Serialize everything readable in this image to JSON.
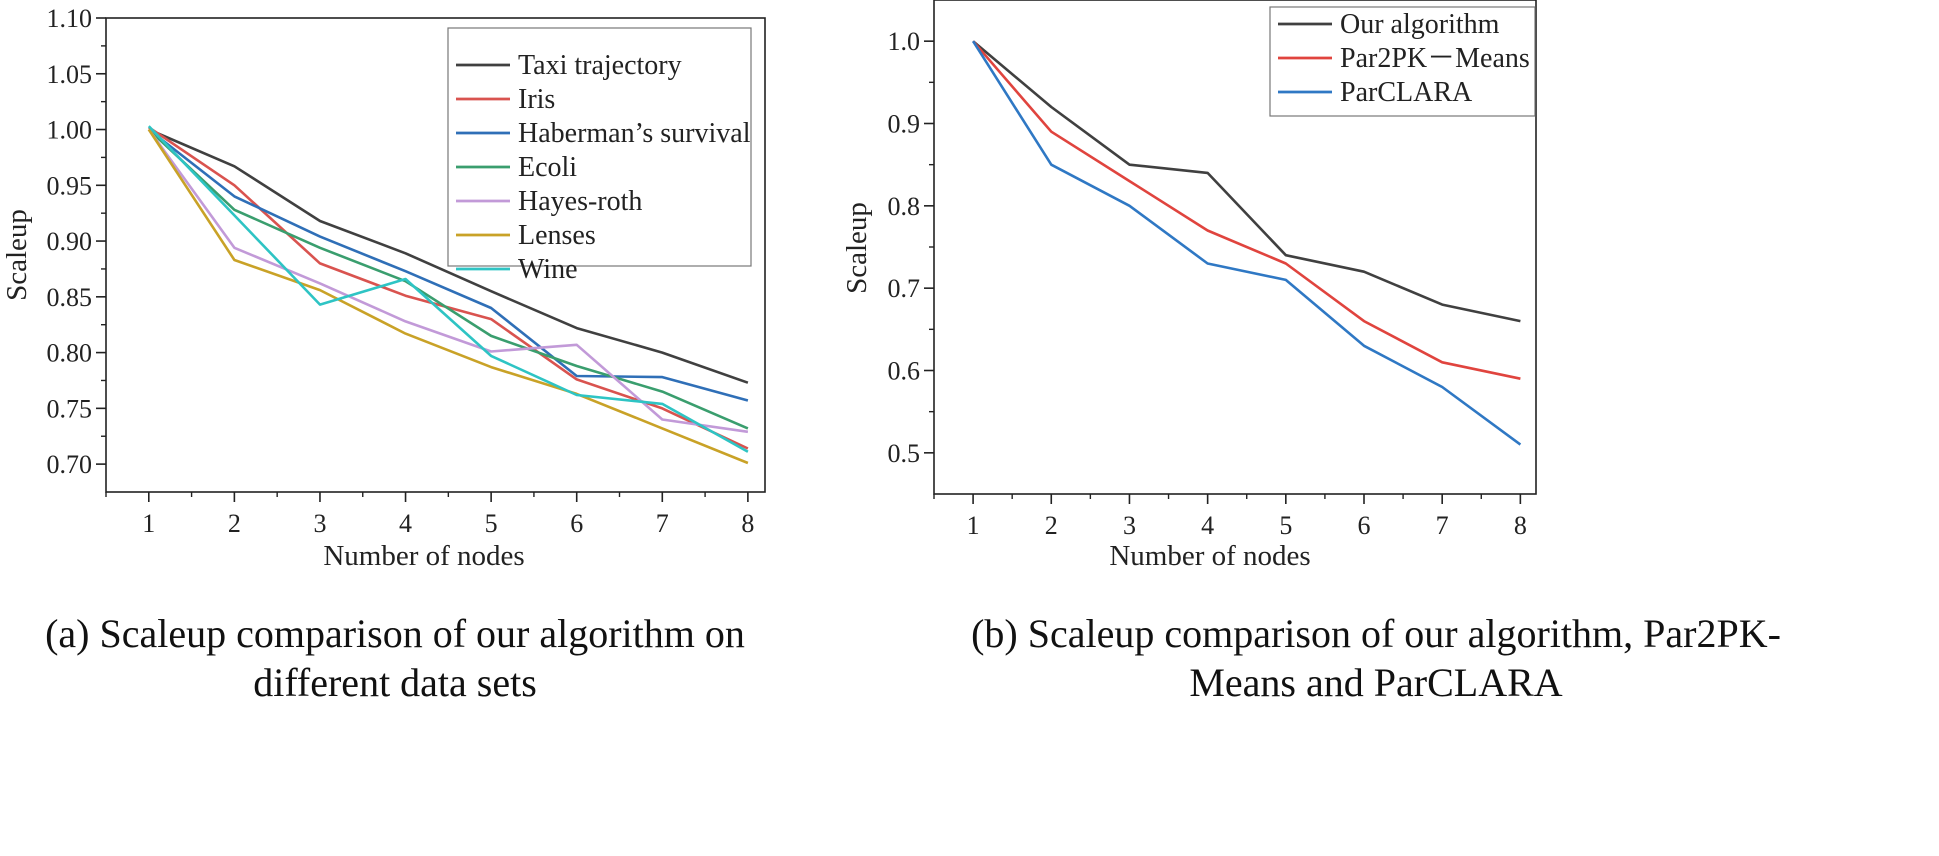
{
  "chart_data": [
    {
      "type": "line",
      "ylabel": "Scaleup",
      "xlabel": "Number of nodes",
      "x": [
        1,
        2,
        3,
        4,
        5,
        6,
        7,
        8
      ],
      "xlim": [
        0.5,
        8.2
      ],
      "ylim": [
        0.675,
        1.1
      ],
      "yticks": [
        0.7,
        0.75,
        0.8,
        0.85,
        0.9,
        0.95,
        1.0,
        1.05,
        1.1
      ],
      "ytick_labels": [
        "0.70",
        "0.75",
        "0.80",
        "0.85",
        "0.90",
        "0.95",
        "1.00",
        "1.05",
        "1.10"
      ],
      "legend_position": "top-right",
      "caption": [
        "(a) Scaleup comparison of our algorithm on",
        "different data sets"
      ],
      "series": [
        {
          "name": "Taxi trajectory",
          "color": "#404040",
          "values": [
            1.0,
            0.967,
            0.918,
            0.889,
            0.855,
            0.822,
            0.8,
            0.773
          ]
        },
        {
          "name": "Iris",
          "color": "#d9534f",
          "values": [
            1.002,
            0.95,
            0.88,
            0.851,
            0.83,
            0.776,
            0.75,
            0.714
          ]
        },
        {
          "name": "Haberman’s survival",
          "color": "#2f6fb7",
          "values": [
            1.0,
            0.94,
            0.904,
            0.873,
            0.84,
            0.779,
            0.778,
            0.757
          ]
        },
        {
          "name": "Ecoli",
          "color": "#3a9e6e",
          "values": [
            1.0,
            0.928,
            0.894,
            0.864,
            0.815,
            0.788,
            0.765,
            0.732
          ]
        },
        {
          "name": "Hayes-roth",
          "color": "#c29ad8",
          "values": [
            1.0,
            0.894,
            0.862,
            0.828,
            0.801,
            0.807,
            0.74,
            0.729
          ]
        },
        {
          "name": "Lenses",
          "color": "#c9a227",
          "values": [
            1.0,
            0.883,
            0.856,
            0.817,
            0.787,
            0.763,
            0.732,
            0.701
          ]
        },
        {
          "name": "Wine",
          "color": "#2ec4c4",
          "values": [
            1.003,
            0.923,
            0.843,
            0.866,
            0.797,
            0.762,
            0.754,
            0.711
          ]
        }
      ]
    },
    {
      "type": "line",
      "ylabel": "Scaleup",
      "xlabel": "Number of nodes",
      "x": [
        1,
        2,
        3,
        4,
        5,
        6,
        7,
        8
      ],
      "xlim": [
        0.5,
        8.2
      ],
      "ylim": [
        0.45,
        1.05
      ],
      "yticks": [
        0.5,
        0.6,
        0.7,
        0.8,
        0.9,
        1.0
      ],
      "ytick_labels": [
        "0.5",
        "0.6",
        "0.7",
        "0.8",
        "0.9",
        "1.0"
      ],
      "legend_position": "top-right",
      "caption": [
        "(b) Scaleup comparison of our algorithm, Par2PK-",
        "Means and ParCLARA"
      ],
      "series": [
        {
          "name": "Our algorithm",
          "color": "#404040",
          "values": [
            1.0,
            0.92,
            0.85,
            0.84,
            0.74,
            0.72,
            0.68,
            0.66
          ]
        },
        {
          "name": "Par2PK－Means",
          "color": "#e0443e",
          "values": [
            1.0,
            0.89,
            0.83,
            0.77,
            0.73,
            0.66,
            0.61,
            0.59
          ]
        },
        {
          "name": "ParCLARA",
          "color": "#2f78c4",
          "values": [
            1.0,
            0.85,
            0.8,
            0.73,
            0.71,
            0.63,
            0.58,
            0.51
          ]
        }
      ]
    }
  ]
}
